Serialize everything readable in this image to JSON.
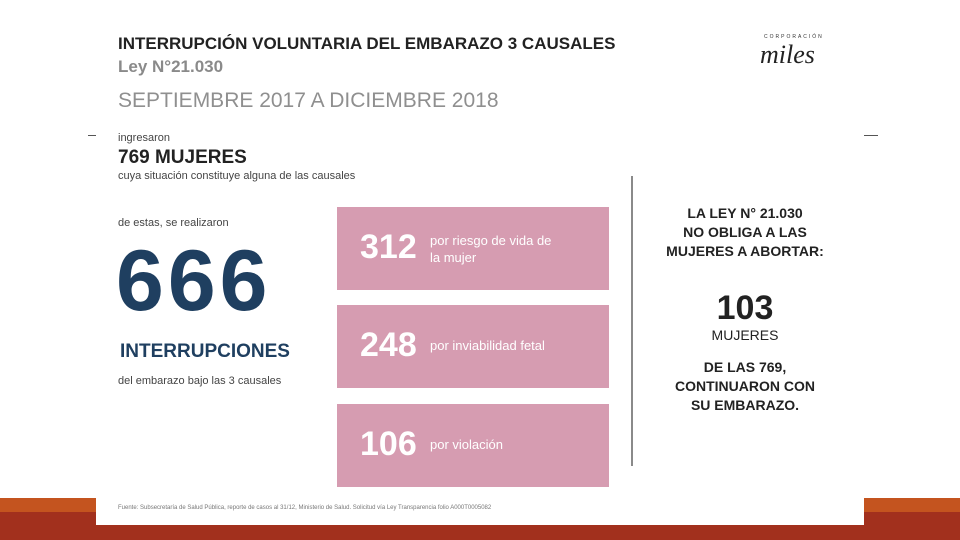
{
  "header": {
    "title": "INTERRUPCIÓN VOLUNTARIA DEL EMBARAZO 3 CAUSALES",
    "law": "Ley N°21.030",
    "period": "SEPTIEMBRE 2017 A DICIEMBRE 2018",
    "logo": {
      "small": "CORPORACIÓN",
      "name": "miles"
    }
  },
  "left": {
    "intro": "ingresaron",
    "total": "769 MUJERES",
    "total_note": "cuya situación constituye alguna de las causales",
    "sub_intro": "de estas, se realizaron",
    "count": "666",
    "count_label": "INTERRUPCIONES",
    "count_note": "del embarazo bajo las 3 causales"
  },
  "cases": [
    {
      "number": "312",
      "lines": [
        "por riesgo de vida de",
        "la mujer"
      ]
    },
    {
      "number": "248",
      "lines": [
        "por  inviabilidad fetal"
      ]
    },
    {
      "number": "106",
      "lines": [
        "por  violación"
      ]
    }
  ],
  "right": {
    "heading": [
      "LA LEY N° 21.030",
      "NO OBLIGA A LAS",
      "MUJERES A ABORTAR:"
    ],
    "number": "103",
    "unit": "MUJERES",
    "note": [
      "DE LAS 769,",
      "CONTINUARON CON",
      "SU EMBARAZO."
    ]
  },
  "footer": {
    "source": "Fuente: Subsecretaría de Salud Pública, reporte de casos al 31/12, Ministerio de Salud. Solicitud vía Ley Transparencia folio A000T0005082"
  }
}
